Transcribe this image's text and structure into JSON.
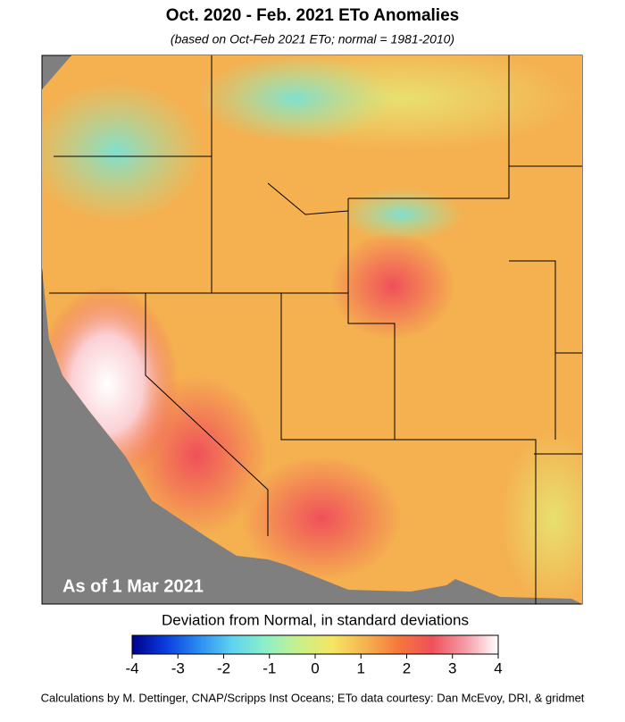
{
  "title": "Oct. 2020 - Feb. 2021 ETo Anomalies",
  "subtitle": "(based on Oct-Feb 2021 ETo; normal = 1981-2010)",
  "map": {
    "stamp": "As of 1 Mar 2021"
  },
  "colorbar": {
    "label": "Deviation from Normal, in standard deviations",
    "lim": [
      -4,
      4
    ],
    "ticks": [
      -4,
      -3,
      -2,
      -1,
      0,
      1,
      2,
      3,
      4
    ],
    "colors": [
      "#00008c",
      "#0a3cdc",
      "#2a8cf0",
      "#5fd2f0",
      "#8cf0c8",
      "#c8f08c",
      "#f5e664",
      "#f5b450",
      "#f5783c",
      "#f0505a",
      "#f59aa5",
      "#ffffff"
    ]
  },
  "footer": "Calculations by M. Dettinger, CNAP/Scripps Inst Oceans; ETo data courtesy: Dan McEvoy, DRI, & gridmet"
}
